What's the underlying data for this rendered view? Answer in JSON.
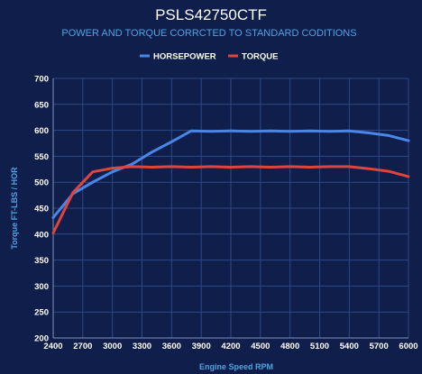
{
  "colors": {
    "background": "#0f1e4a",
    "grid": "#2e4a86",
    "horsepower": "#4a86e8",
    "torque": "#e0443e",
    "subtitle": "#4fa3e3"
  },
  "chart_data": {
    "type": "line",
    "title": "PSLS42750CTF",
    "subtitle": "POWER AND TORQUE CORRCTED TO STANDARD CODITIONS",
    "xlabel": "Engine Speed RPM",
    "ylabel": "Torque FT-LBS / HOR",
    "xlim": [
      2400,
      6000
    ],
    "ylim": [
      200,
      700
    ],
    "x_ticks": [
      "2400",
      "2700",
      "3000",
      "3300",
      "3600",
      "3900",
      "4200",
      "4500",
      "4800",
      "5100",
      "5400",
      "5700",
      "6000"
    ],
    "y_ticks": [
      "200",
      "250",
      "300",
      "350",
      "400",
      "450",
      "500",
      "550",
      "600",
      "650",
      "700"
    ],
    "legend_position": "top-center",
    "grid": true,
    "x": [
      2400,
      2600,
      2800,
      3000,
      3200,
      3400,
      3600,
      3800,
      4000,
      4200,
      4400,
      4600,
      4800,
      5000,
      5200,
      5400,
      5600,
      5800,
      6000
    ],
    "series": [
      {
        "name": "HORSEPOWER",
        "color": "#4a86e8",
        "values": [
          432,
          478,
          500,
          520,
          535,
          558,
          578,
          599,
          598,
          599,
          598,
          599,
          598,
          599,
          598,
          599,
          595,
          590,
          580
        ]
      },
      {
        "name": "TORQUE",
        "color": "#e0443e",
        "values": [
          402,
          480,
          520,
          527,
          530,
          529,
          530,
          529,
          530,
          529,
          530,
          529,
          530,
          529,
          530,
          530,
          526,
          521,
          511
        ]
      }
    ]
  }
}
